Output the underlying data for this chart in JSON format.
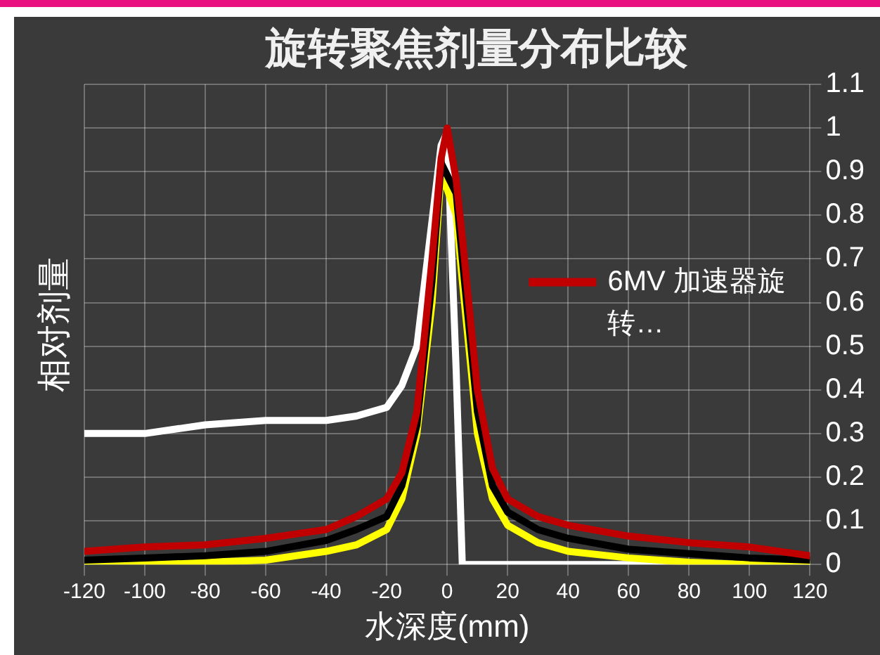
{
  "chart_data": {
    "type": "line",
    "title": "旋转聚焦剂量分布比较",
    "xlabel": "水深度(mm)",
    "ylabel": "相对剂量",
    "x": [
      -120,
      -100,
      -80,
      -60,
      -40,
      -30,
      -20,
      -15,
      -10,
      -5,
      -2,
      0,
      3,
      5,
      10,
      15,
      20,
      30,
      40,
      60,
      80,
      100,
      120
    ],
    "series": [
      {
        "name": "6MV 加速器旋转…",
        "color": "#c00000",
        "values": [
          0.03,
          0.04,
          0.045,
          0.06,
          0.08,
          0.11,
          0.15,
          0.21,
          0.35,
          0.7,
          0.93,
          1.0,
          0.88,
          0.75,
          0.4,
          0.22,
          0.15,
          0.11,
          0.09,
          0.065,
          0.05,
          0.04,
          0.02
        ]
      },
      {
        "color": "#000000",
        "values": [
          0.01,
          0.015,
          0.02,
          0.03,
          0.055,
          0.08,
          0.11,
          0.18,
          0.32,
          0.65,
          0.92,
          null,
          0.85,
          0.7,
          0.35,
          0.18,
          0.12,
          0.08,
          0.06,
          0.035,
          0.025,
          0.015,
          0.01
        ]
      },
      {
        "color": "#ffff00",
        "values": [
          0.0,
          0.005,
          0.005,
          0.01,
          0.03,
          0.045,
          0.08,
          0.15,
          0.3,
          0.6,
          0.9,
          null,
          0.8,
          0.65,
          0.3,
          0.15,
          0.09,
          0.05,
          0.03,
          0.015,
          0.005,
          0.0,
          0.0
        ]
      },
      {
        "color": "#ffffff",
        "values": [
          0.3,
          0.3,
          0.32,
          0.33,
          0.33,
          0.34,
          0.36,
          0.41,
          0.5,
          null,
          0.96,
          0.99,
          0.44,
          0.0,
          0.0,
          0.0,
          0.0,
          0.0,
          0.0,
          0.0,
          0.0,
          0.0,
          0.0
        ]
      }
    ],
    "xlim": [
      -120,
      120
    ],
    "xticks": [
      -120,
      -100,
      -80,
      -60,
      -40,
      -20,
      0,
      20,
      40,
      60,
      80,
      100,
      120
    ],
    "ylim": [
      0,
      1.1
    ],
    "yticks": [
      0,
      0.1,
      0.2,
      0.3,
      0.4,
      0.5,
      0.6,
      0.7,
      0.8,
      0.9,
      1,
      1.1
    ],
    "grid": true,
    "legend": "right",
    "marker": "none",
    "line_style": "solid"
  }
}
